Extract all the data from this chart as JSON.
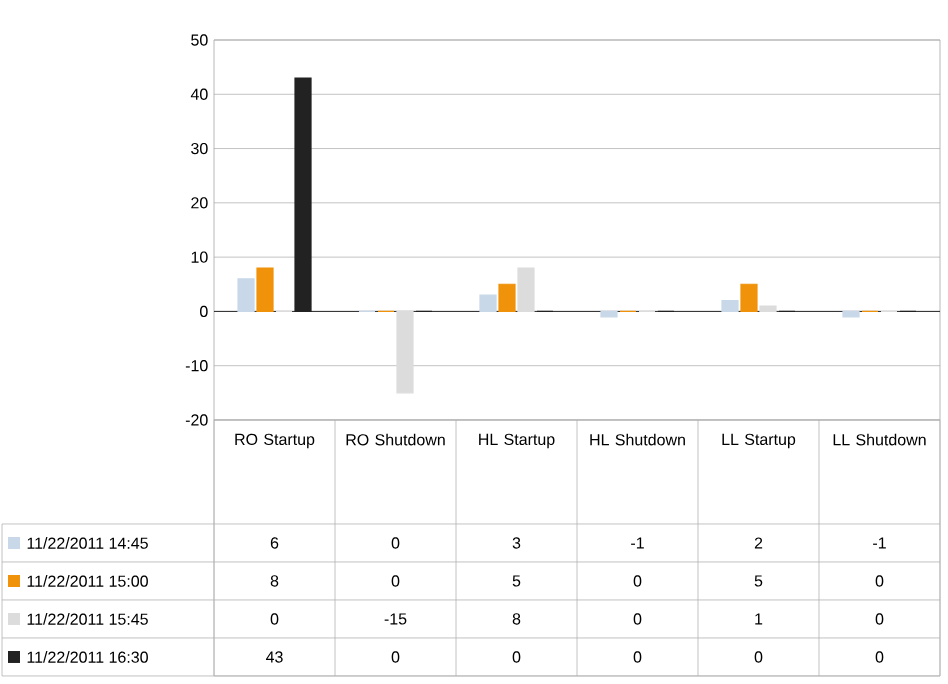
{
  "chart_data": {
    "type": "bar",
    "categories": [
      "RO Startup",
      "RO Shutdown",
      "HL Startup",
      "HL Shutdown",
      "LL Startup",
      "LL Shutdown"
    ],
    "series": [
      {
        "name": "11/22/2011 14:45",
        "color": "#c8d8e8",
        "values": [
          6,
          0,
          3,
          -1,
          2,
          -1
        ]
      },
      {
        "name": "11/22/2011 15:00",
        "color": "#f0920a",
        "values": [
          8,
          0,
          5,
          0,
          5,
          0
        ]
      },
      {
        "name": "11/22/2011 15:45",
        "color": "#dcdcdc",
        "values": [
          0,
          -15,
          8,
          0,
          1,
          0
        ]
      },
      {
        "name": "11/22/2011 16:30",
        "color": "#222222",
        "values": [
          43,
          0,
          0,
          0,
          0,
          0
        ]
      }
    ],
    "ylim": [
      -20,
      50
    ],
    "yticks": [
      -20,
      -10,
      0,
      10,
      20,
      30,
      40,
      50
    ],
    "grid": "y",
    "legend": "bottom",
    "data_labels": true
  }
}
